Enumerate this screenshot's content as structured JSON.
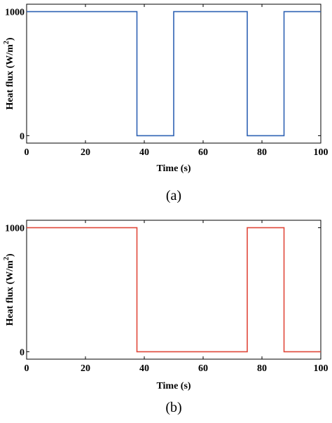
{
  "chart_data": [
    {
      "type": "line",
      "caption": "(a)",
      "xlabel": "Time (s)",
      "ylabel_main": "Heat flux (W/m",
      "ylabel_sup": "2",
      "ylabel_close": ")",
      "xlim": [
        0,
        100
      ],
      "ylim": [
        -60,
        1060
      ],
      "xticks": [
        0,
        20,
        40,
        60,
        80,
        100
      ],
      "yticks": [
        0,
        1000
      ],
      "grid": false,
      "series": [
        {
          "color": "#2f62b4",
          "x": [
            0,
            37.5,
            37.5,
            50,
            50,
            75,
            75,
            87.5,
            87.5,
            100
          ],
          "y": [
            1000,
            1000,
            0,
            0,
            1000,
            1000,
            0,
            0,
            1000,
            1000
          ]
        }
      ]
    },
    {
      "type": "line",
      "caption": "(b)",
      "xlabel": "Time (s)",
      "ylabel_main": "Heat flux (W/m",
      "ylabel_sup": "2",
      "ylabel_close": ")",
      "xlim": [
        0,
        100
      ],
      "ylim": [
        -60,
        1060
      ],
      "xticks": [
        0,
        20,
        40,
        60,
        80,
        100
      ],
      "yticks": [
        0,
        1000
      ],
      "grid": false,
      "series": [
        {
          "color": "#e0483a",
          "x": [
            0,
            37.5,
            37.5,
            75,
            75,
            87.5,
            87.5,
            100
          ],
          "y": [
            1000,
            1000,
            0,
            0,
            1000,
            1000,
            0,
            0
          ]
        }
      ]
    }
  ]
}
